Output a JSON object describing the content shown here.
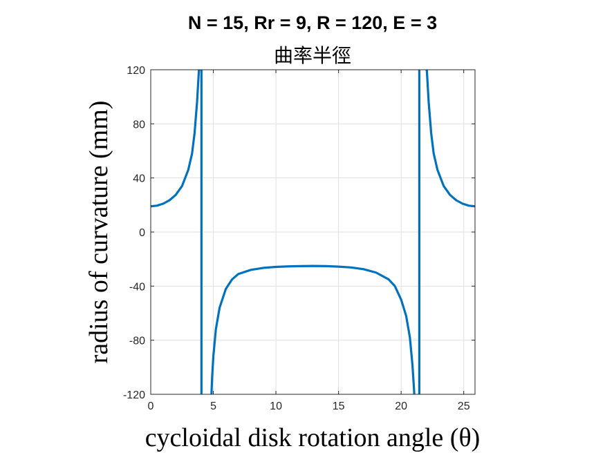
{
  "chart_data": {
    "type": "line",
    "title": "N = 15, Rr = 9, R = 120, E = 3",
    "subtitle": "曲率半徑",
    "xlabel": "cycloidal disk rotation angle (θ)",
    "ylabel": "radius of curvature (mm)",
    "xlim": [
      0,
      25.9
    ],
    "ylim": [
      -120,
      120
    ],
    "xticks": [
      0,
      5,
      10,
      15,
      20,
      25
    ],
    "yticks": [
      -120,
      -80,
      -40,
      0,
      40,
      80,
      120
    ],
    "xtick_labels": [
      "0",
      "5",
      "10",
      "15",
      "20",
      "25"
    ],
    "ytick_labels": [
      "-120",
      "-80",
      "-40",
      "0",
      "40",
      "80",
      "120"
    ],
    "grid": true,
    "color": "#0072BD",
    "series": [
      {
        "segments": [
          {
            "x": [
              0,
              0.5,
              1.0,
              1.5,
              2.0,
              2.5,
              3.0,
              3.3,
              3.5,
              3.7,
              3.85,
              3.95
            ],
            "y": [
              19,
              19.5,
              21,
              23.5,
              27.5,
              34,
              46,
              58,
              73,
              96,
              120,
              120
            ]
          },
          {
            "x": [
              4.05,
              4.05
            ],
            "y": [
              120,
              -120
            ]
          },
          {
            "x": [
              4.85,
              4.9,
              5.0,
              5.2,
              5.5,
              6.0,
              6.5,
              7.0,
              8.0,
              9.0,
              10.0,
              11.0,
              12.0,
              12.95,
              14.0,
              15.0,
              16.0,
              17.0,
              18.0,
              19.0,
              19.5,
              20.0,
              20.4,
              20.7,
              20.9,
              21.0,
              21.05
            ],
            "y": [
              -120,
              -108,
              -92,
              -72,
              -56,
              -42,
              -35,
              -31,
              -28,
              -26.5,
              -25.8,
              -25.4,
              -25.2,
              -25.1,
              -25.2,
              -25.6,
              -26.2,
              -27.5,
              -30,
              -35,
              -40,
              -50,
              -62,
              -78,
              -98,
              -112,
              -120
            ]
          },
          {
            "x": [
              21.45,
              21.45
            ],
            "y": [
              -120,
              120
            ]
          },
          {
            "x": [
              21.95,
              22.05,
              22.2,
              22.4,
              22.6,
              22.9,
              23.4,
              23.9,
              24.4,
              24.9,
              25.4,
              25.9
            ],
            "y": [
              120,
              120,
              96,
              73,
              58,
              46,
              34,
              27.5,
              23.5,
              21,
              19.5,
              19
            ]
          }
        ]
      }
    ]
  }
}
